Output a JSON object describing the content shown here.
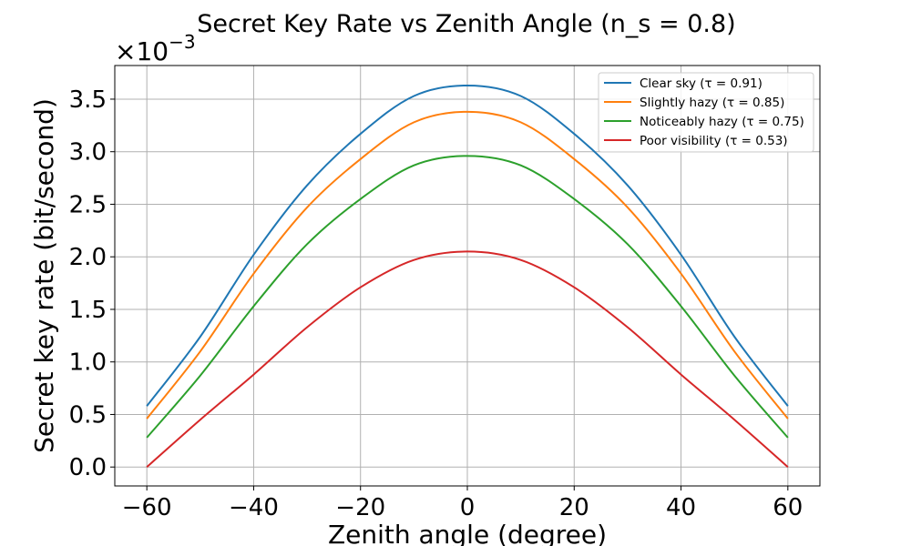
{
  "chart_data": {
    "type": "line",
    "title": "Secret Key Rate vs Zenith Angle (n_s = 0.8)",
    "xlabel": "Zenith angle (degree)",
    "ylabel": "Secret key rate (bit/second)",
    "y_offset_label": "×10",
    "y_offset_exponent": "−3",
    "xlim": [
      -66,
      66
    ],
    "ylim": [
      -0.18,
      3.82
    ],
    "y_scale": 0.001,
    "x_ticks": [
      -60,
      -40,
      -20,
      0,
      20,
      40,
      60
    ],
    "x_tick_labels": [
      "−60",
      "−40",
      "−20",
      "0",
      "20",
      "40",
      "60"
    ],
    "y_ticks": [
      0.0,
      0.5,
      1.0,
      1.5,
      2.0,
      2.5,
      3.0,
      3.5
    ],
    "y_tick_labels": [
      "0.0",
      "0.5",
      "1.0",
      "1.5",
      "2.0",
      "2.5",
      "3.0",
      "3.5"
    ],
    "grid": true,
    "legend_position": "top-right",
    "x": [
      -60,
      -50,
      -40,
      -30,
      -20,
      -10,
      0,
      10,
      20,
      30,
      40,
      50,
      60
    ],
    "series": [
      {
        "name": "Clear sky (τ = 0.91)",
        "color": "#1f77b4",
        "values": [
          0.58,
          1.24,
          2.02,
          2.68,
          3.17,
          3.53,
          3.63,
          3.53,
          3.17,
          2.68,
          2.02,
          1.24,
          0.58
        ]
      },
      {
        "name": "Slightly hazy (τ = 0.85)",
        "color": "#ff7f0e",
        "values": [
          0.46,
          1.1,
          1.84,
          2.47,
          2.93,
          3.28,
          3.38,
          3.28,
          2.93,
          2.47,
          1.84,
          1.1,
          0.46
        ]
      },
      {
        "name": "Noticeably hazy (τ = 0.75)",
        "color": "#2ca02c",
        "values": [
          0.28,
          0.87,
          1.53,
          2.12,
          2.55,
          2.87,
          2.96,
          2.87,
          2.55,
          2.12,
          1.53,
          0.87,
          0.28
        ]
      },
      {
        "name": "Poor visibility (τ = 0.53)",
        "color": "#d62728",
        "values": [
          0.0,
          0.45,
          0.88,
          1.33,
          1.71,
          1.97,
          2.05,
          1.97,
          1.71,
          1.33,
          0.88,
          0.45,
          0.0
        ]
      }
    ]
  }
}
